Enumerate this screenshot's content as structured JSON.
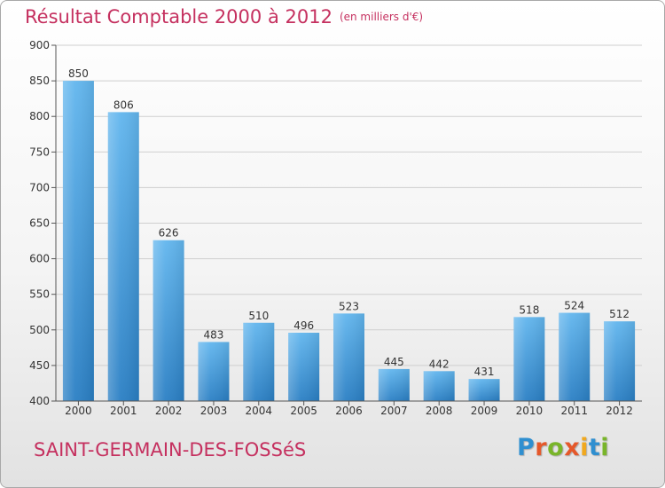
{
  "header": {
    "title": "Résultat Comptable 2000 à 2012",
    "unit": "(en milliers d'€)"
  },
  "footer": {
    "commune": "SAINT-GERMAIN-DES-FOSSéS",
    "logo": "Proxiti"
  },
  "colors": {
    "title": "#c5305f",
    "bar_light": "#62b6ee",
    "bar_dark": "#2a7fc4",
    "grid": "#cfcfcf",
    "logo_letters": [
      "#2f8fd0",
      "#e5582a",
      "#79b52a",
      "#e5582a",
      "#f0a81f",
      "#2f8fd0",
      "#79b52a"
    ]
  },
  "chart_data": {
    "type": "bar",
    "title": "Résultat Comptable 2000 à 2012",
    "subtitle": "(en milliers d'€)",
    "xlabel": "",
    "ylabel": "",
    "categories": [
      "2000",
      "2001",
      "2002",
      "2003",
      "2004",
      "2005",
      "2006",
      "2007",
      "2008",
      "2009",
      "2010",
      "2011",
      "2012"
    ],
    "values": [
      850,
      806,
      626,
      483,
      510,
      496,
      523,
      445,
      442,
      431,
      518,
      524,
      512
    ],
    "ylim": [
      400,
      900
    ],
    "yticks": [
      400,
      450,
      500,
      550,
      600,
      650,
      700,
      750,
      800,
      850,
      900
    ],
    "grid": true
  }
}
